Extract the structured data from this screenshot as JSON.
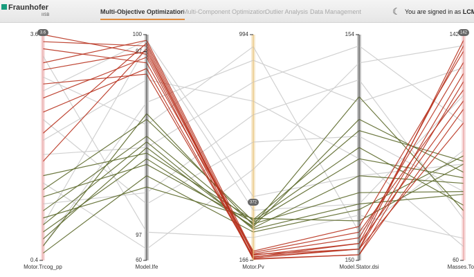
{
  "header": {
    "logo": "Fraunhofer",
    "logo_sub": "IISB",
    "tabs": [
      "Multi-Objective Optimization",
      "Multi-Component Optimization",
      "Outlier Analysis",
      "Data Management"
    ],
    "active_tab": 0,
    "user_text": "You are signed in as",
    "user": "LCM"
  },
  "chart_data": {
    "type": "parallel",
    "axes": [
      {
        "name": "Motor.Trcog_pp",
        "lim": [
          0.4,
          3.6
        ],
        "ticks": [
          0.4,
          3.6
        ],
        "badge": "3.6",
        "color": "#e8a0a0"
      },
      {
        "name": "Model.Ife",
        "lim": [
          60,
          100
        ],
        "ticks": [
          60,
          97,
          100
        ],
        "annotation": "97",
        "color": "#555555"
      },
      {
        "name": "Motor.Pv",
        "lim": [
          166,
          994
        ],
        "ticks": [
          166,
          994
        ],
        "badge": "372",
        "color": "#e8c27a"
      },
      {
        "name": "Model.Stator.dsi",
        "lim": [
          150,
          154
        ],
        "ticks": [
          150,
          154
        ],
        "color": "#555555"
      },
      {
        "name": "Masses.Total",
        "lim": [
          60,
          142
        ],
        "ticks": [
          60,
          142
        ],
        "badge": "142",
        "color": "#e8a0a0"
      }
    ],
    "series": [
      {
        "color": "#cccccc",
        "values": [
          1.2,
          72,
          700,
          153.2,
          75
        ]
      },
      {
        "color": "#cccccc",
        "values": [
          2.8,
          99,
          400,
          151.5,
          95
        ]
      },
      {
        "color": "#cccccc",
        "values": [
          0.6,
          88,
          900,
          152.8,
          130
        ]
      },
      {
        "color": "#cccccc",
        "values": [
          3.3,
          65,
          250,
          150.8,
          68
        ]
      },
      {
        "color": "#cccccc",
        "values": [
          1.9,
          80,
          820,
          153.8,
          110
        ]
      },
      {
        "color": "#cccccc",
        "values": [
          2.4,
          70,
          600,
          152.2,
          85
        ]
      },
      {
        "color": "#cccccc",
        "values": [
          0.9,
          98,
          350,
          151.0,
          120
        ]
      },
      {
        "color": "#cccccc",
        "values": [
          3.0,
          84,
          950,
          150.5,
          100
        ]
      },
      {
        "color": "#cccccc",
        "values": [
          1.5,
          62,
          500,
          153.5,
          138
        ]
      },
      {
        "color": "#cccccc",
        "values": [
          2.1,
          92,
          750,
          151.8,
          65
        ]
      },
      {
        "color": "#5d6a2c",
        "values": [
          0.8,
          78,
          290,
          152.5,
          92
        ]
      },
      {
        "color": "#5d6a2c",
        "values": [
          1.1,
          82,
          300,
          151.2,
          85
        ]
      },
      {
        "color": "#5d6a2c",
        "values": [
          0.5,
          75,
          270,
          150.9,
          98
        ]
      },
      {
        "color": "#5d6a2c",
        "values": [
          1.4,
          85,
          310,
          152.0,
          80
        ]
      },
      {
        "color": "#5d6a2c",
        "values": [
          0.7,
          80,
          285,
          151.5,
          88
        ]
      },
      {
        "color": "#5d6a2c",
        "values": [
          1.0,
          73,
          320,
          150.7,
          95
        ]
      },
      {
        "color": "#5d6a2c",
        "values": [
          0.6,
          86,
          295,
          152.9,
          78
        ]
      },
      {
        "color": "#5d6a2c",
        "values": [
          1.3,
          77,
          305,
          151.8,
          90
        ]
      },
      {
        "color": "#5d6a2c",
        "values": [
          0.9,
          81,
          280,
          151.0,
          84
        ]
      },
      {
        "color": "#5d6a2c",
        "values": [
          1.6,
          79,
          315,
          152.3,
          96
        ]
      },
      {
        "color": "#b8321e",
        "values": [
          3.5,
          98,
          175,
          150.2,
          140
        ]
      },
      {
        "color": "#b8321e",
        "values": [
          3.1,
          97,
          190,
          150.4,
          132
        ]
      },
      {
        "color": "#b8321e",
        "values": [
          2.7,
          96,
          170,
          150.1,
          125
        ]
      },
      {
        "color": "#b8321e",
        "values": [
          2.2,
          98.5,
          185,
          150.3,
          118
        ]
      },
      {
        "color": "#b8321e",
        "values": [
          3.4,
          95,
          200,
          150.6,
          136
        ]
      },
      {
        "color": "#b8321e",
        "values": [
          2.9,
          93,
          180,
          150.2,
          128
        ]
      },
      {
        "color": "#b8321e",
        "values": [
          1.8,
          97.5,
          172,
          150.1,
          115
        ]
      },
      {
        "color": "#b8321e",
        "values": [
          3.2,
          99,
          195,
          150.5,
          122
        ]
      },
      {
        "color": "#b8321e",
        "values": [
          2.5,
          94,
          178,
          150.3,
          138
        ]
      },
      {
        "color": "#b8321e",
        "values": [
          3.6,
          96.5,
          188,
          150.2,
          110
        ]
      }
    ]
  }
}
